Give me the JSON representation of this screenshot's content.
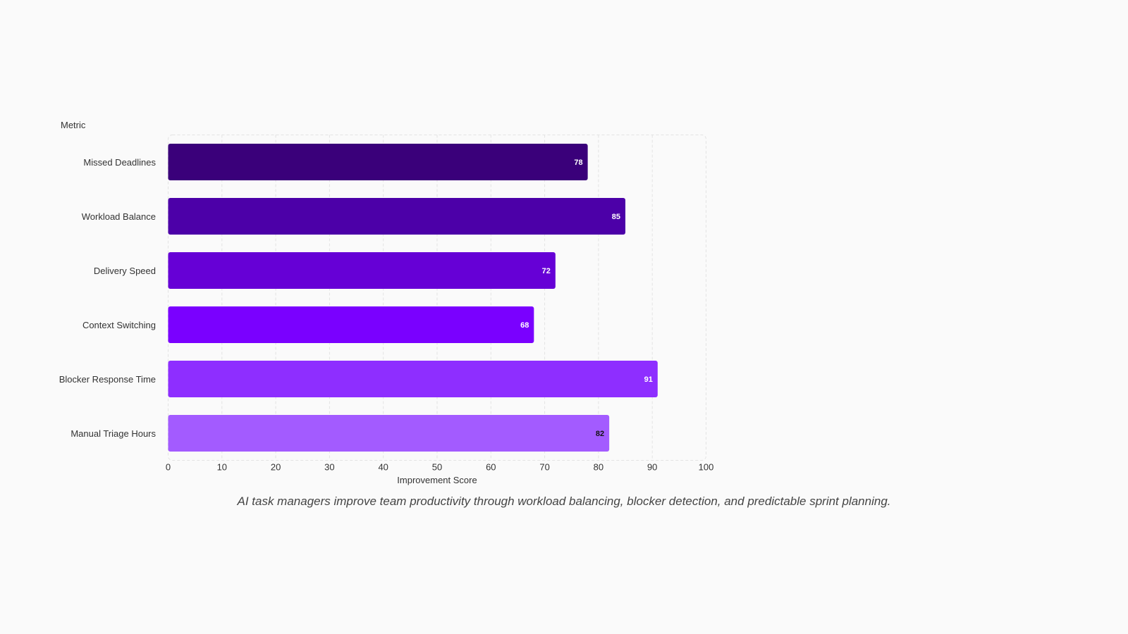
{
  "chart_data": {
    "type": "bar",
    "orientation": "horizontal",
    "y_axis_label": "Metric",
    "x_axis_label": "Improvement Score",
    "categories": [
      "Missed Deadlines",
      "Workload Balance",
      "Delivery Speed",
      "Context Switching",
      "Blocker Response Time",
      "Manual Triage Hours"
    ],
    "values": [
      78,
      85,
      72,
      68,
      91,
      82
    ],
    "bar_colors": [
      "#3a007a",
      "#4c00a8",
      "#6600d6",
      "#7a00ff",
      "#8e2eff",
      "#a35bff"
    ],
    "label_colors": [
      "#ffffff",
      "#ffffff",
      "#ffffff",
      "#ffffff",
      "#ffffff",
      "#111111"
    ],
    "x_ticks": [
      0,
      10,
      20,
      30,
      40,
      50,
      60,
      70,
      80,
      90,
      100
    ],
    "xlim": [
      0,
      100
    ],
    "grid": true,
    "caption": "AI task managers improve team productivity through workload balancing, blocker detection, and predictable sprint planning."
  }
}
